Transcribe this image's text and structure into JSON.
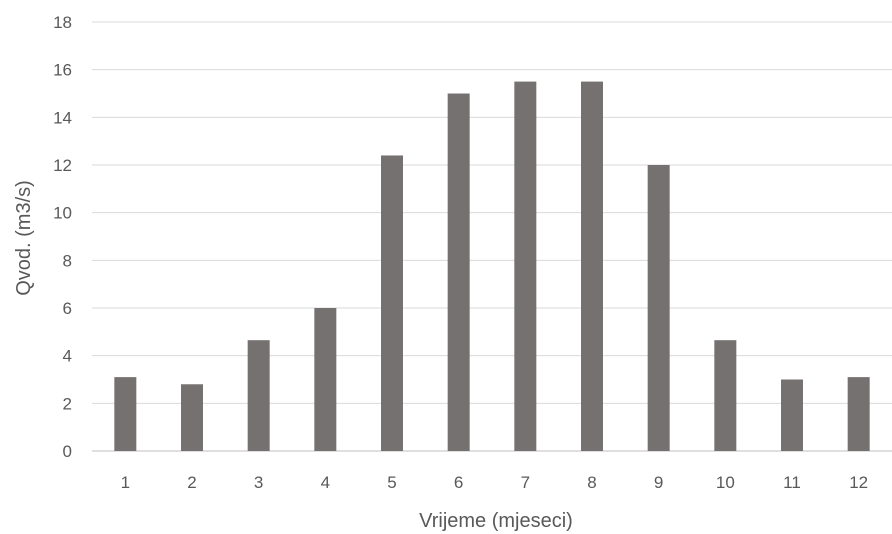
{
  "chart_data": {
    "type": "bar",
    "categories": [
      "1",
      "2",
      "3",
      "4",
      "5",
      "6",
      "7",
      "8",
      "9",
      "10",
      "11",
      "12"
    ],
    "values": [
      3.1,
      2.8,
      4.65,
      6.0,
      12.4,
      15.0,
      15.5,
      15.5,
      12.0,
      4.65,
      3.0,
      3.1
    ],
    "title": "",
    "xlabel": "Vrijeme (mjeseci)",
    "ylabel": "Qvod. (m3/s)",
    "ylim": [
      0,
      18
    ],
    "yticks": [
      "0",
      "2",
      "4",
      "6",
      "8",
      "10",
      "12",
      "14",
      "16",
      "18"
    ],
    "grid": true,
    "legend": "none",
    "colors": {
      "bar": "#767171",
      "grid": "#d9d9d9",
      "text": "#595959"
    }
  }
}
